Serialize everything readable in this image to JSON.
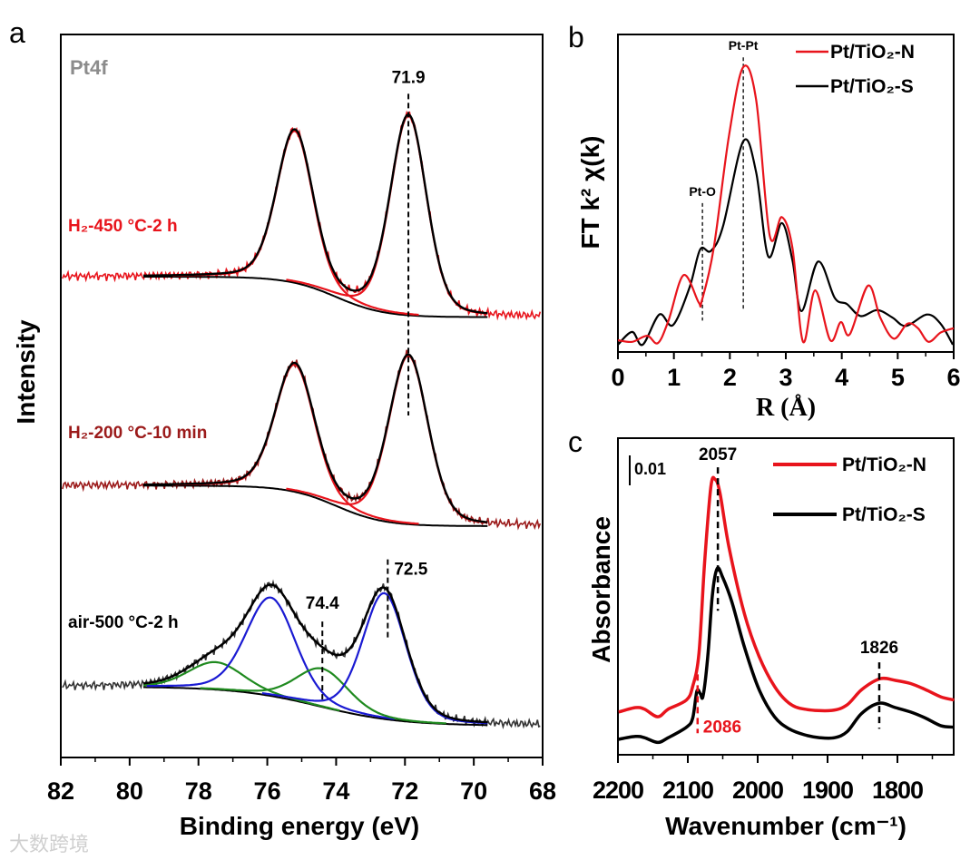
{
  "panel_labels": {
    "a": "a",
    "b": "b",
    "c": "c"
  },
  "watermark": "大数跨境",
  "colors": {
    "red": "#e8141c",
    "dark_red": "#9b1a1a",
    "blue": "#1a1ad2",
    "green": "#1f8a1f",
    "gray": "#8c8c8c",
    "black": "#000000"
  },
  "chart_data": [
    {
      "type": "line",
      "title": "Pt4f",
      "xlabel": "Binding energy (eV)",
      "ylabel": "Intensity",
      "xlim": [
        82,
        68
      ],
      "ylim": [
        0,
        100
      ],
      "x_ticks": [
        "82",
        "80",
        "78",
        "76",
        "74",
        "72",
        "70",
        "68"
      ],
      "spectra": [
        {
          "label": "H₂-450 °C-2 h",
          "label_color": "#e8141c",
          "data_color": "#e8141c",
          "background": {
            "left": 66.5,
            "right": 60.9,
            "center": 74.0,
            "width": 0.7
          },
          "components": [
            {
              "center": 75.2,
              "fwhm": 1.25,
              "height": 21.0,
              "color": "#e8141c"
            },
            {
              "center": 71.9,
              "fwhm": 1.25,
              "height": 27.6,
              "color": "#e8141c"
            }
          ]
        },
        {
          "label": "H₂-200 °C-10 min",
          "label_color": "#9b1a1a",
          "data_color": "#9b1a1a",
          "background": {
            "left": 37.6,
            "right": 32.0,
            "center": 74.0,
            "width": 0.7
          },
          "components": [
            {
              "center": 75.2,
              "fwhm": 1.35,
              "height": 17.6,
              "color": "#e8141c"
            },
            {
              "center": 71.9,
              "fwhm": 1.35,
              "height": 23.3,
              "color": "#e8141c"
            }
          ]
        },
        {
          "label": "air-500 °C-2 h",
          "label_color": "#000000",
          "data_color": "#333333",
          "background": {
            "left": 9.8,
            "right": 4.4,
            "center": 74.5,
            "width": 1.2
          },
          "components": [
            {
              "center": 77.5,
              "fwhm": 1.9,
              "height": 3.8,
              "color": "#1f8a1f"
            },
            {
              "center": 75.9,
              "fwhm": 1.7,
              "height": 13.6,
              "color": "#1a1ad2"
            },
            {
              "center": 74.4,
              "fwhm": 1.8,
              "height": 5.3,
              "color": "#1f8a1f"
            },
            {
              "center": 72.6,
              "fwhm": 1.5,
              "height": 17.4,
              "color": "#1a1ad2"
            }
          ]
        }
      ],
      "annotations": [
        {
          "text": "71.9",
          "x": 71.9,
          "from": 47.3,
          "to": 91.8
        },
        {
          "text": "74.4",
          "x": 74.4,
          "from": 7.8,
          "to": 18.8
        },
        {
          "text": "72.5",
          "x": 72.5,
          "from": 16.6,
          "to": 27.4
        }
      ]
    },
    {
      "type": "line",
      "xlabel": "R (Å)",
      "ylabel": "FT k² χ(k)",
      "xlim": [
        0,
        6
      ],
      "ylim": [
        0,
        100
      ],
      "x_ticks": [
        "0",
        "1",
        "2",
        "3",
        "4",
        "5",
        "6"
      ],
      "legend_position": "top-right",
      "series": [
        {
          "name": "Pt/TiO₂-N",
          "color": "#e8141c",
          "x": [
            0,
            0.254,
            0.524,
            0.713,
            0.903,
            1.173,
            1.443,
            1.498,
            1.713,
            1.983,
            2.238,
            2.47,
            2.713,
            2.929,
            3.118,
            3.308,
            3.524,
            3.794,
            3.983,
            4.145,
            4.47,
            4.686,
            4.929,
            5.172,
            5.361,
            5.551,
            5.767,
            6.0
          ],
          "y": [
            3.7,
            3.2,
            5.1,
            2.8,
            9.9,
            24.2,
            15.6,
            16.1,
            32.8,
            68.0,
            89.7,
            79.4,
            36.6,
            42.5,
            32.8,
            3.2,
            19.4,
            3.7,
            9.4,
            5.6,
            20.9,
            10.9,
            4.2,
            8.9,
            7.5,
            3.2,
            6.1,
            7.5
          ]
        },
        {
          "name": "Pt/TiO₂-S",
          "color": "#000000",
          "x": [
            0,
            0.254,
            0.443,
            0.74,
            0.984,
            1.281,
            1.47,
            1.659,
            1.875,
            2.238,
            2.47,
            2.686,
            2.929,
            3.118,
            3.281,
            3.578,
            3.875,
            4.092,
            4.335,
            4.632,
            4.902,
            5.145,
            5.524,
            5.767,
            5.984
          ],
          "y": [
            2.3,
            6.3,
            2.3,
            11.8,
            8.5,
            20.4,
            32.3,
            31.8,
            39.4,
            66.3,
            56.6,
            30.1,
            40.6,
            28.9,
            12.9,
            28.5,
            17.0,
            15.1,
            11.3,
            13.2,
            10.9,
            8.2,
            11.8,
            8.9,
            2.3
          ]
        }
      ],
      "annotations": [
        {
          "text": "Pt-Pt",
          "x": 2.24,
          "from": 13.2,
          "to": 92.8
        },
        {
          "text": "Pt-O",
          "x": 1.51,
          "from": 9.9,
          "to": 46.9
        }
      ]
    },
    {
      "type": "line",
      "xlabel": "Wavenumber (cm⁻¹)",
      "ylabel": "Absorbance",
      "xlim": [
        2200,
        1720
      ],
      "ylim": [
        0,
        100
      ],
      "x_ticks": [
        "2200",
        "2100",
        "2000",
        "1900",
        "1800"
      ],
      "scale_bar": "0.01",
      "legend_position": "top-right",
      "series": [
        {
          "name": "Pt/TiO₂-N",
          "color": "#e8141c",
          "x": [
            2199,
            2175,
            2162,
            2143,
            2128,
            2102,
            2093,
            2084,
            2076,
            2067,
            2061,
            2054,
            2041,
            2019,
            1998,
            1976,
            1955,
            1933,
            1894,
            1872,
            1851,
            1825,
            1803,
            1781,
            1760,
            1738,
            1719
          ],
          "y": [
            13.5,
            14.9,
            14.4,
            12.0,
            14.4,
            17.3,
            21.6,
            32.1,
            60.7,
            84.6,
            87.0,
            82.7,
            65.5,
            44.5,
            31.1,
            21.6,
            16.3,
            14.4,
            14.0,
            15.8,
            20.6,
            24.0,
            23.5,
            22.5,
            20.6,
            18.3,
            17.3
          ]
        },
        {
          "name": "Pt/TiO₂-S",
          "color": "#000000",
          "x": [
            2199,
            2175,
            2162,
            2143,
            2128,
            2102,
            2093,
            2087,
            2082,
            2078,
            2071,
            2065,
            2058,
            2050,
            2037,
            2019,
            1998,
            1976,
            1955,
            1933,
            1911,
            1890,
            1872,
            1851,
            1826,
            1803,
            1781,
            1760,
            1738,
            1719
          ],
          "y": [
            4.9,
            5.8,
            5.4,
            3.9,
            5.4,
            8.7,
            11.6,
            20.1,
            19.2,
            18.7,
            32.1,
            50.2,
            58.8,
            56.0,
            48.3,
            34.0,
            20.6,
            12.0,
            8.2,
            6.3,
            5.4,
            5.4,
            7.3,
            13.1,
            16.3,
            14.9,
            13.5,
            11.6,
            9.2,
            8.7
          ]
        }
      ],
      "annotations": [
        {
          "text": "2057",
          "x": 2057,
          "from": 45.5,
          "to": 90.8,
          "color": "#000000"
        },
        {
          "text": "2086",
          "x": 2086,
          "from": 6.8,
          "to": 25.4,
          "color": "#e8141c"
        },
        {
          "text": "1826",
          "x": 1826,
          "from": 8.2,
          "to": 29.2,
          "color": "#000000"
        }
      ]
    }
  ]
}
